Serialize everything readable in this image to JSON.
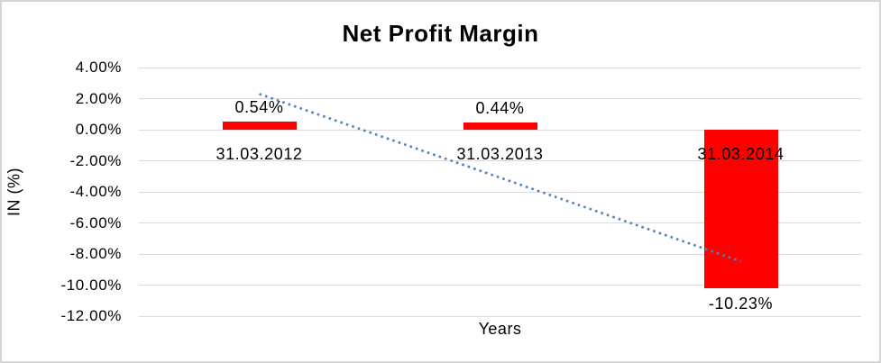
{
  "window": {
    "background": "#ffffff",
    "border_color": "#d6d6d6"
  },
  "chart_data": {
    "type": "bar",
    "title": "Net Profit Margin",
    "xlabel": "Years",
    "ylabel": "IN (%)",
    "categories": [
      "31.03.2012",
      "31.03.2013",
      "31.03.2014"
    ],
    "values": [
      0.54,
      0.44,
      -10.23
    ],
    "value_labels": [
      "0.54%",
      "0.44%",
      "-10.23%"
    ],
    "ylim": [
      -12,
      4
    ],
    "ytick_step": 2,
    "ytick_labels": [
      "4.00%",
      "2.00%",
      "0.00%",
      "-2.00%",
      "-4.00%",
      "-6.00%",
      "-8.00%",
      "-10.00%",
      "-12.00%"
    ],
    "grid": true,
    "legend": "none",
    "bar_color": "#ff0000",
    "gridline_color": "#d9d9d9",
    "text_color": "#000000",
    "trendline": {
      "type": "linear",
      "style": "dotted",
      "color": "#4f81bd",
      "start_value": 2.3,
      "end_value": -8.47
    }
  }
}
